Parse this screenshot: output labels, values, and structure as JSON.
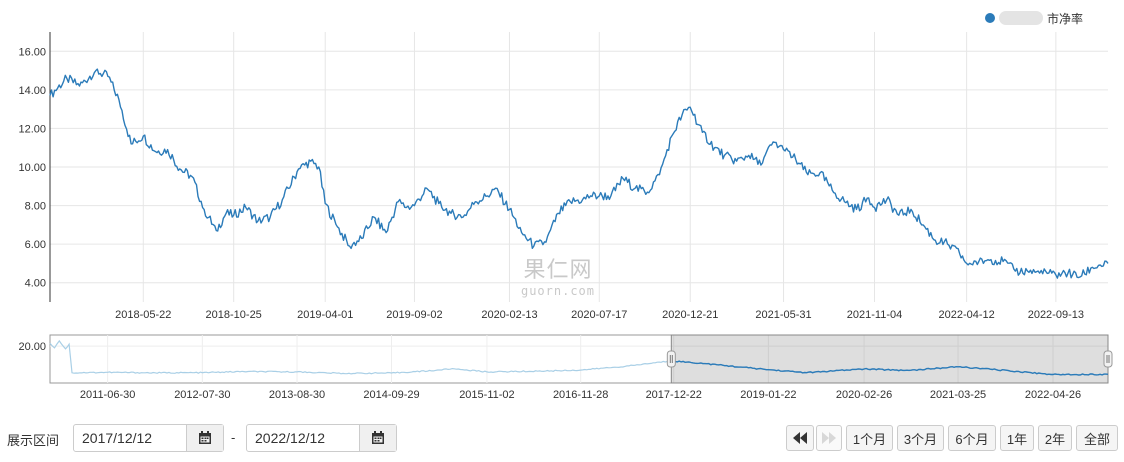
{
  "legend": {
    "label": "市净率",
    "color": "#2b7bb9"
  },
  "watermark": {
    "cn": "果仁网",
    "en": "guorn.com"
  },
  "chart_data": [
    {
      "type": "line",
      "name": "main",
      "ylim": [
        3.0,
        17.0
      ],
      "y_ticks": [
        4.0,
        6.0,
        8.0,
        10.0,
        12.0,
        14.0,
        16.0
      ],
      "y_tick_labels": [
        "4.00",
        "6.00",
        "8.00",
        "10.00",
        "12.00",
        "14.00",
        "16.00"
      ],
      "xlim": [
        "2017-12-12",
        "2022-12-12"
      ],
      "x_ticks": [
        "2018-05-22",
        "2018-10-25",
        "2019-04-01",
        "2019-09-02",
        "2020-02-13",
        "2020-07-17",
        "2020-12-21",
        "2021-05-31",
        "2021-11-04",
        "2022-04-12",
        "2022-09-13"
      ],
      "grid": true,
      "color": "#2b7bb9",
      "series": [
        {
          "x": [
            "2017-12-12",
            "2018-01-10",
            "2018-02-01",
            "2018-03-01",
            "2018-03-22",
            "2018-04-10",
            "2018-05-01",
            "2018-05-22",
            "2018-06-12",
            "2018-07-03",
            "2018-07-24",
            "2018-08-14",
            "2018-09-04",
            "2018-09-25",
            "2018-10-12",
            "2018-10-25",
            "2018-11-15",
            "2018-12-06",
            "2018-12-27",
            "2019-01-17",
            "2019-02-14",
            "2019-03-07",
            "2019-03-21",
            "2019-04-01",
            "2019-04-22",
            "2019-05-13",
            "2019-06-03",
            "2019-06-24",
            "2019-07-15",
            "2019-08-05",
            "2019-08-19",
            "2019-09-02",
            "2019-09-23",
            "2019-10-14",
            "2019-11-04",
            "2019-11-25",
            "2019-12-16",
            "2020-01-06",
            "2020-01-20",
            "2020-02-13",
            "2020-03-05",
            "2020-03-26",
            "2020-04-16",
            "2020-05-07",
            "2020-05-28",
            "2020-06-18",
            "2020-07-02",
            "2020-07-17",
            "2020-08-06",
            "2020-08-27",
            "2020-09-17",
            "2020-10-08",
            "2020-10-29",
            "2020-11-19",
            "2020-12-07",
            "2020-12-21",
            "2021-01-11",
            "2021-02-01",
            "2021-02-18",
            "2021-03-11",
            "2021-04-01",
            "2021-04-22",
            "2021-05-13",
            "2021-05-31",
            "2021-06-21",
            "2021-07-12",
            "2021-08-02",
            "2021-08-23",
            "2021-09-13",
            "2021-10-04",
            "2021-10-25",
            "2021-11-04",
            "2021-11-25",
            "2021-12-16",
            "2022-01-06",
            "2022-01-27",
            "2022-02-17",
            "2022-03-10",
            "2022-03-31",
            "2022-04-12",
            "2022-05-03",
            "2022-05-24",
            "2022-06-14",
            "2022-07-05",
            "2022-07-26",
            "2022-08-16",
            "2022-09-06",
            "2022-09-13",
            "2022-10-04",
            "2022-10-25",
            "2022-11-15",
            "2022-12-12"
          ],
          "y": [
            13.7,
            14.6,
            14.2,
            15.0,
            14.7,
            13.5,
            11.2,
            11.6,
            10.8,
            10.9,
            9.9,
            9.5,
            7.8,
            6.7,
            7.6,
            7.5,
            7.9,
            7.2,
            7.4,
            8.3,
            9.9,
            10.3,
            10.0,
            8.1,
            6.9,
            5.9,
            6.3,
            7.4,
            6.6,
            8.2,
            7.9,
            8.0,
            8.9,
            8.1,
            7.6,
            7.4,
            8.2,
            8.5,
            8.9,
            7.8,
            6.6,
            5.9,
            6.1,
            7.6,
            8.2,
            8.3,
            8.5,
            8.5,
            8.5,
            9.4,
            8.9,
            8.7,
            9.6,
            11.6,
            12.7,
            13.1,
            11.8,
            11.0,
            10.6,
            10.3,
            10.6,
            10.1,
            11.3,
            10.9,
            10.4,
            9.6,
            9.7,
            8.8,
            8.2,
            7.8,
            8.4,
            7.9,
            8.3,
            7.5,
            7.8,
            7.0,
            6.2,
            6.0,
            5.5,
            5.0,
            5.1,
            5.2,
            5.1,
            4.6,
            4.6,
            4.5,
            4.5,
            4.4,
            4.5,
            4.3,
            4.8,
            5.0
          ]
        }
      ]
    },
    {
      "type": "area",
      "name": "navigator",
      "xlim": [
        "2010-11-01",
        "2022-12-12"
      ],
      "x_ticks": [
        "2011-06-30",
        "2012-07-30",
        "2013-08-30",
        "2014-09-29",
        "2015-11-02",
        "2016-11-28",
        "2017-12-22",
        "2019-01-22",
        "2020-02-26",
        "2021-03-25",
        "2022-04-26"
      ],
      "y_ticks": [
        20.0
      ],
      "y_tick_labels": [
        "20.00"
      ],
      "ylim": [
        0,
        26
      ],
      "selected_range": [
        "2017-12-12",
        "2022-12-12"
      ],
      "series": [
        {
          "x": [
            "2010-11-01",
            "2010-11-20",
            "2010-12-10",
            "2011-01-05",
            "2011-01-20",
            "2011-02-01",
            "2011-06-30",
            "2012-01-15",
            "2012-07-30",
            "2013-01-20",
            "2013-08-30",
            "2014-03-10",
            "2014-09-29",
            "2015-04-01",
            "2015-06-10",
            "2015-11-02",
            "2016-06-01",
            "2016-11-28",
            "2017-06-01",
            "2017-12-12",
            "2018-05-01",
            "2019-01-22",
            "2019-07-01",
            "2020-02-26",
            "2020-09-01",
            "2021-03-25",
            "2021-09-01",
            "2022-04-26",
            "2022-12-12"
          ],
          "y": [
            21.5,
            19.0,
            22.8,
            18.5,
            21.0,
            5.5,
            5.8,
            5.5,
            5.6,
            6.2,
            6.0,
            5.2,
            5.4,
            6.8,
            7.8,
            6.0,
            6.4,
            7.0,
            9.0,
            12.0,
            10.5,
            7.2,
            5.6,
            7.6,
            6.8,
            8.8,
            7.2,
            4.6,
            4.7
          ]
        }
      ]
    }
  ],
  "range_selector": {
    "label": "展示区间",
    "start_date": "2017/12/12",
    "end_date": "2022/12/12",
    "separator": "-",
    "buttons": [
      "1个月",
      "3个月",
      "6个月",
      "1年",
      "2年",
      "全部"
    ]
  }
}
